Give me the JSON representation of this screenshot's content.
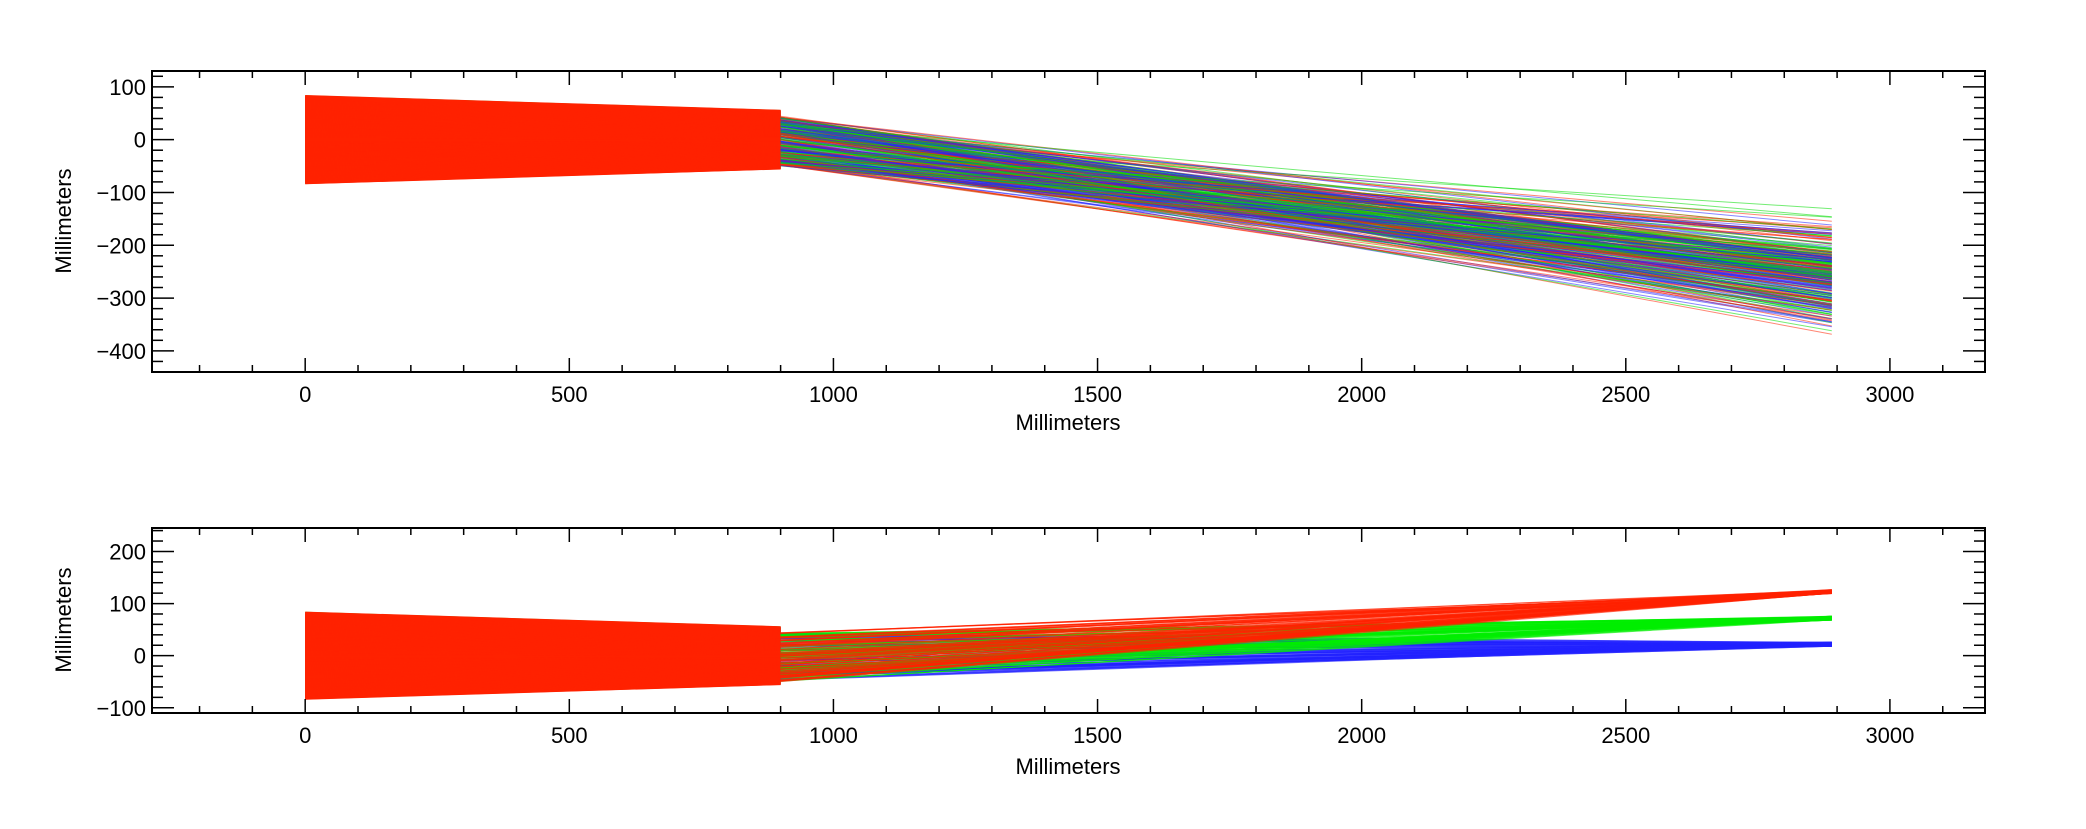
{
  "figure": {
    "background": "#ffffff",
    "axis_color": "#000000"
  },
  "chart_data": [
    {
      "type": "line",
      "name": "top-panel",
      "title": "",
      "xlabel": "Millimeters",
      "ylabel": "Millimeters",
      "xlim": [
        -290,
        3180
      ],
      "ylim": [
        -440,
        130
      ],
      "xticks": [
        0,
        500,
        1000,
        1500,
        2000,
        2500,
        3000
      ],
      "xtick_labels": [
        "0",
        "500",
        "1000",
        "1500",
        "2000",
        "2500",
        "3000"
      ],
      "x_minor_step": 100,
      "yticks": [
        100,
        0,
        -100,
        -200,
        -300,
        -400
      ],
      "ytick_labels": [
        "100",
        "0",
        "−100",
        "−200",
        "−300",
        "−400"
      ],
      "y_minor_step": 20,
      "grid": false,
      "x_knots": [
        0,
        900,
        2890
      ],
      "bundle": {
        "start_y_min": -83,
        "start_y_max": 83,
        "mid_y_min": -55,
        "mid_y_max": 55
      },
      "series": [
        {
          "name": "red",
          "color": "#ff2200"
        },
        {
          "name": "green",
          "color": "#00dd00"
        },
        {
          "name": "blue",
          "color": "#2222ff"
        }
      ],
      "fan_out": {
        "from_x": 900,
        "to_x": 2890,
        "start_y_range": [
          -50,
          45
        ],
        "end_y_range": [
          -390,
          -120
        ],
        "end_y_center": -290
      }
    },
    {
      "type": "line",
      "name": "bottom-panel",
      "title": "",
      "xlabel": "Millimeters",
      "ylabel": "Millimeters",
      "xlim": [
        -290,
        3180
      ],
      "ylim": [
        -110,
        245
      ],
      "xticks": [
        0,
        500,
        1000,
        1500,
        2000,
        2500,
        3000
      ],
      "xtick_labels": [
        "0",
        "500",
        "1000",
        "1500",
        "2000",
        "2500",
        "3000"
      ],
      "x_minor_step": 100,
      "yticks": [
        200,
        100,
        0,
        -100
      ],
      "ytick_labels": [
        "200",
        "100",
        "0",
        "−100"
      ],
      "y_minor_step": 20,
      "grid": false,
      "x_knots": [
        0,
        900,
        2890
      ],
      "bundle": {
        "start_y_min": -83,
        "start_y_max": 83,
        "mid_y_min": -55,
        "mid_y_max": 55
      },
      "series": [
        {
          "name": "red",
          "color": "#ff2200",
          "end_y": 123
        },
        {
          "name": "green",
          "color": "#00ee00",
          "end_y": 72
        },
        {
          "name": "blue",
          "color": "#2222ff",
          "end_y": 22
        }
      ],
      "fan_out": {
        "from_x": 900,
        "to_x": 2890,
        "start_y_range": [
          -50,
          45
        ]
      }
    }
  ]
}
